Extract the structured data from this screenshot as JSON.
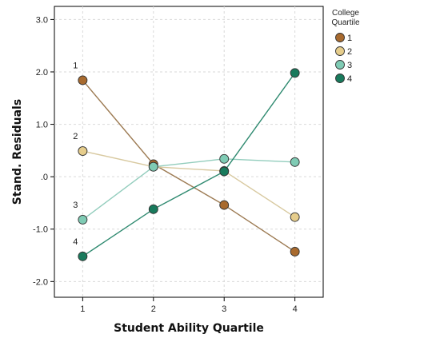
{
  "chart_data": {
    "type": "line",
    "xlabel": "Student Ability Quartile",
    "ylabel": "Stand. Residuals",
    "x": [
      1,
      2,
      3,
      4
    ],
    "xlim": [
      0.6,
      4.4
    ],
    "ylim": [
      -2.3,
      3.25
    ],
    "x_ticks": [
      1,
      2,
      3,
      4
    ],
    "x_tick_labels": [
      "1",
      "2",
      "3",
      "4"
    ],
    "y_ticks": [
      -2.0,
      -1.0,
      0.0,
      1.0,
      2.0,
      3.0
    ],
    "y_tick_labels": [
      "-2.0",
      "-1.0",
      ".0",
      "1.0",
      "2.0",
      "3.0"
    ],
    "grid": true,
    "legend": {
      "title_line1": "College",
      "title_line2": "Quartile",
      "placement": "right"
    },
    "series": [
      {
        "name": "1",
        "label": "1",
        "color": "#a86a2e",
        "line_color": "#9c7a52",
        "values": [
          1.84,
          0.24,
          -0.54,
          -1.43
        ]
      },
      {
        "name": "2",
        "label": "2",
        "color": "#e6cd8c",
        "line_color": "#d8c9a0",
        "values": [
          0.49,
          0.19,
          0.11,
          -0.77
        ]
      },
      {
        "name": "3",
        "label": "3",
        "color": "#7fcbb4",
        "line_color": "#93cdbd",
        "values": [
          -0.82,
          0.19,
          0.34,
          0.28
        ]
      },
      {
        "name": "4",
        "label": "4",
        "color": "#187a5c",
        "line_color": "#2f8a70",
        "values": [
          -1.52,
          -0.62,
          0.1,
          1.98
        ]
      }
    ]
  }
}
